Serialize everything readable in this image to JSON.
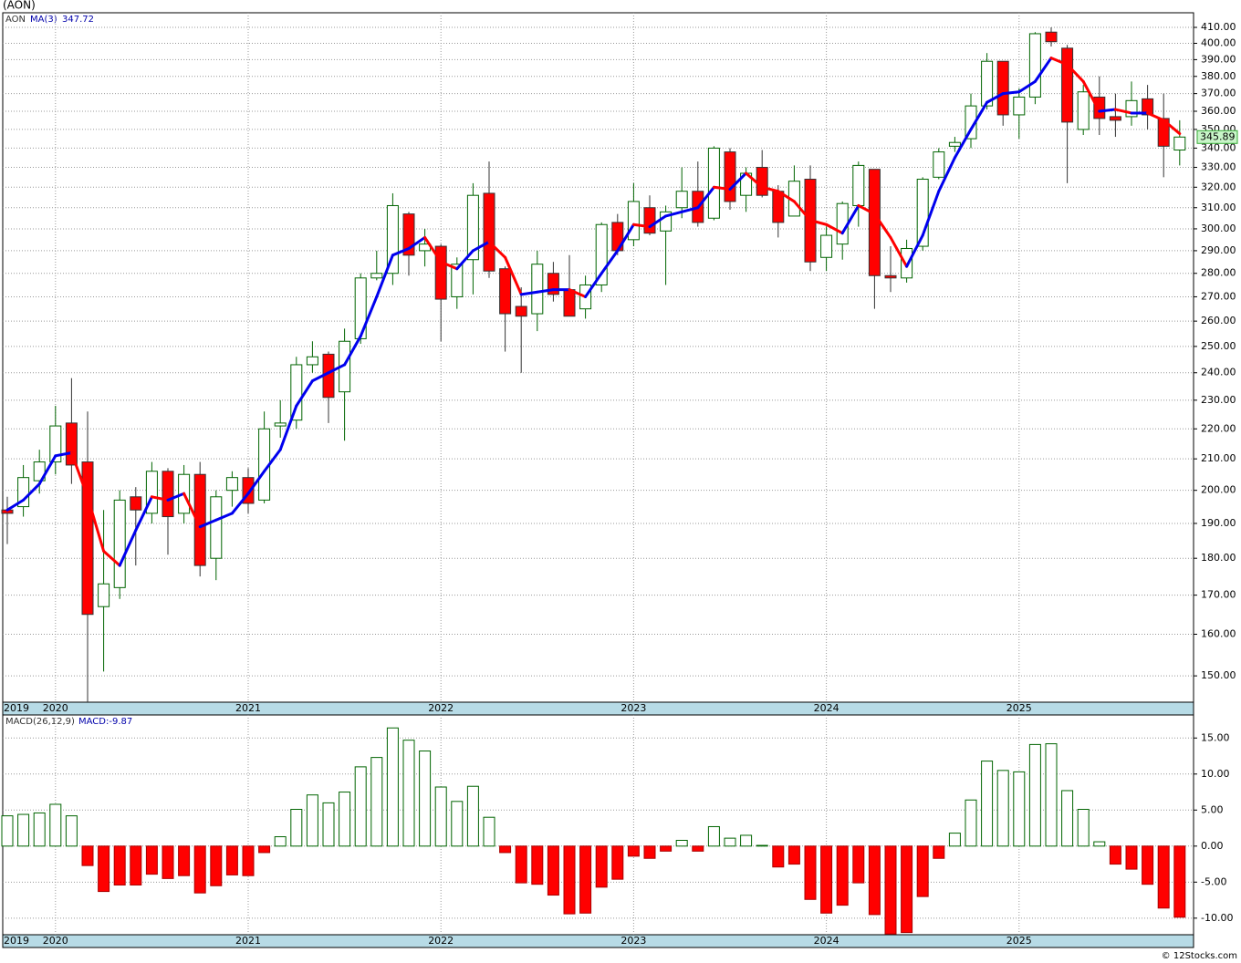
{
  "chart_data": {
    "type": "candlestick",
    "title": "(AON)",
    "symbol": "AON",
    "ma_label": "MA(3)",
    "ma_value_label": "347.72",
    "last_price_label": "345.89",
    "log_scale": true,
    "grid": true,
    "up_color": "#006400",
    "down_color": "#ff0000",
    "ma_up_color": "#0000ee",
    "ma_down_color": "#ff0000",
    "open": [
      194,
      195,
      203,
      209,
      222,
      209,
      167,
      172,
      198,
      193,
      206,
      193,
      205,
      180,
      200,
      204,
      197,
      221,
      223,
      243,
      247,
      233,
      253,
      278,
      280,
      307,
      290,
      292,
      270,
      286,
      317,
      282,
      266,
      263,
      280,
      273,
      265,
      275,
      303,
      295,
      310,
      299,
      310,
      318,
      305,
      338,
      316,
      330,
      318,
      306,
      324,
      287,
      293,
      311,
      329,
      279,
      278,
      292,
      325,
      341,
      345,
      363,
      389,
      358,
      368,
      407,
      397,
      350,
      368,
      357,
      357,
      367,
      356,
      339
    ],
    "high": [
      198,
      208,
      213,
      228,
      238,
      226,
      194,
      200,
      201,
      209,
      207,
      208,
      209,
      200,
      206,
      207,
      226,
      230,
      246,
      252,
      248,
      257,
      280,
      290,
      317,
      308,
      300,
      293,
      287,
      322,
      333,
      283,
      274,
      290,
      285,
      288,
      279,
      303,
      307,
      322,
      316,
      311,
      330,
      333,
      341,
      340,
      330,
      339,
      321,
      331,
      331,
      301,
      313,
      333,
      329,
      292,
      295,
      325,
      340,
      346,
      370,
      394,
      389,
      373,
      407,
      410,
      399,
      375,
      380,
      370,
      377,
      375,
      370,
      355
    ],
    "low": [
      184,
      192,
      199,
      205,
      202,
      144,
      151,
      169,
      178,
      190,
      181,
      190,
      175,
      174,
      195,
      193,
      196,
      217,
      220,
      240,
      222,
      216,
      251,
      277,
      275,
      279,
      283,
      252,
      265,
      271,
      278,
      248,
      240,
      256,
      268,
      262,
      261,
      272,
      288,
      292,
      297,
      275,
      305,
      301,
      304,
      309,
      308,
      315,
      296,
      306,
      281,
      281,
      286,
      301,
      265,
      272,
      276,
      290,
      324,
      338,
      340,
      361,
      352,
      345,
      364,
      398,
      322,
      347,
      347,
      346,
      352,
      350,
      325,
      331
    ],
    "close": [
      193,
      204,
      209,
      221,
      208,
      165,
      173,
      197,
      194,
      206,
      192,
      205,
      178,
      198,
      204,
      196,
      220,
      222,
      243,
      246,
      231,
      252,
      278,
      280,
      311,
      288,
      293,
      269,
      284,
      316,
      281,
      263,
      262,
      284,
      271,
      262,
      275,
      302,
      290,
      313,
      298,
      308,
      318,
      303,
      340,
      313,
      327,
      316,
      303,
      323,
      285,
      297,
      312,
      331,
      279,
      278,
      291,
      324,
      338,
      343,
      363,
      389,
      358,
      368,
      406,
      401,
      354,
      371,
      356,
      355,
      366,
      358,
      341,
      345.89
    ],
    "ma": [
      194,
      197,
      202,
      211,
      212,
      198,
      182,
      178,
      188,
      198,
      197,
      199,
      189,
      191,
      193,
      199,
      206,
      213,
      228,
      237,
      240,
      243,
      254,
      270,
      288,
      291,
      296,
      285,
      282,
      290,
      294,
      287,
      271,
      272,
      273,
      273,
      270,
      280,
      290,
      302,
      301,
      306,
      308,
      310,
      320,
      319,
      327,
      320,
      318,
      313,
      304,
      302,
      298,
      311,
      307,
      296,
      283,
      297,
      318,
      335,
      350,
      365,
      370,
      371,
      377,
      391,
      387,
      377,
      360,
      361,
      359,
      359,
      355,
      347.72
    ],
    "ylim": [
      144,
      419.4
    ],
    "yticks": [
      {
        "value": 150,
        "label": "150.00"
      },
      {
        "value": 160,
        "label": "160.00"
      },
      {
        "value": 170,
        "label": "170.00"
      },
      {
        "value": 180,
        "label": "180.00"
      },
      {
        "value": 190,
        "label": "190.00"
      },
      {
        "value": 200,
        "label": "200.00"
      },
      {
        "value": 210,
        "label": "210.00"
      },
      {
        "value": 220,
        "label": "220.00"
      },
      {
        "value": 230,
        "label": "230.00"
      },
      {
        "value": 240,
        "label": "240.00"
      },
      {
        "value": 250,
        "label": "250.00"
      },
      {
        "value": 260,
        "label": "260.00"
      },
      {
        "value": 270,
        "label": "270.00"
      },
      {
        "value": 280,
        "label": "280.00"
      },
      {
        "value": 290,
        "label": "290.00"
      },
      {
        "value": 300,
        "label": "300.00"
      },
      {
        "value": 310,
        "label": "310.00"
      },
      {
        "value": 320,
        "label": "320.00"
      },
      {
        "value": 330,
        "label": "330.00"
      },
      {
        "value": 340,
        "label": "340.00"
      },
      {
        "value": 350,
        "label": "350.00"
      },
      {
        "value": 360,
        "label": "360.00"
      },
      {
        "value": 370,
        "label": "370.00"
      },
      {
        "value": 380,
        "label": "380.00"
      },
      {
        "value": 390,
        "label": "390.00"
      },
      {
        "value": 400,
        "label": "400.00"
      },
      {
        "value": 410,
        "label": "410.00"
      }
    ],
    "x_labels": [
      {
        "label": "2019",
        "at": 0
      },
      {
        "label": "2020",
        "at": 3
      },
      {
        "label": "2021",
        "at": 15
      },
      {
        "label": "2022",
        "at": 27
      },
      {
        "label": "2023",
        "at": 39
      },
      {
        "label": "2024",
        "at": 51
      },
      {
        "label": "2025",
        "at": 63
      }
    ],
    "macd": {
      "label": "MACD(26,12,9)",
      "value_label": "MACD:-9.87",
      "values": [
        4.2,
        4.4,
        4.6,
        5.8,
        4.2,
        -2.7,
        -6.3,
        -5.4,
        -5.4,
        -3.9,
        -4.5,
        -4.1,
        -6.5,
        -5.5,
        -4.0,
        -4.1,
        -0.9,
        1.3,
        5.1,
        7.1,
        6.0,
        7.5,
        11.0,
        12.3,
        16.4,
        14.7,
        13.2,
        8.2,
        6.2,
        8.3,
        4.0,
        -0.9,
        -5.1,
        -5.3,
        -6.8,
        -9.4,
        -9.3,
        -5.7,
        -4.6,
        -1.4,
        -1.7,
        -0.7,
        0.8,
        -0.7,
        2.7,
        1.1,
        1.5,
        0.1,
        -2.9,
        -2.5,
        -7.4,
        -9.3,
        -8.2,
        -5.1,
        -9.5,
        -12.2,
        -12.0,
        -7.0,
        -1.7,
        1.8,
        6.4,
        11.8,
        10.5,
        10.3,
        14.1,
        14.2,
        7.7,
        5.1,
        0.6,
        -2.5,
        -3.2,
        -5.3,
        -8.6,
        -9.87
      ],
      "ylim": [
        -12.3,
        18.2
      ],
      "yticks": [
        {
          "value": -10,
          "label": "-10.00"
        },
        {
          "value": -5,
          "label": "-5.00"
        },
        {
          "value": 0,
          "label": "0.00"
        },
        {
          "value": 5,
          "label": "5.00"
        },
        {
          "value": 10,
          "label": "10.00"
        },
        {
          "value": 15,
          "label": "15.00"
        }
      ]
    },
    "footer": "© 12Stocks.com"
  }
}
